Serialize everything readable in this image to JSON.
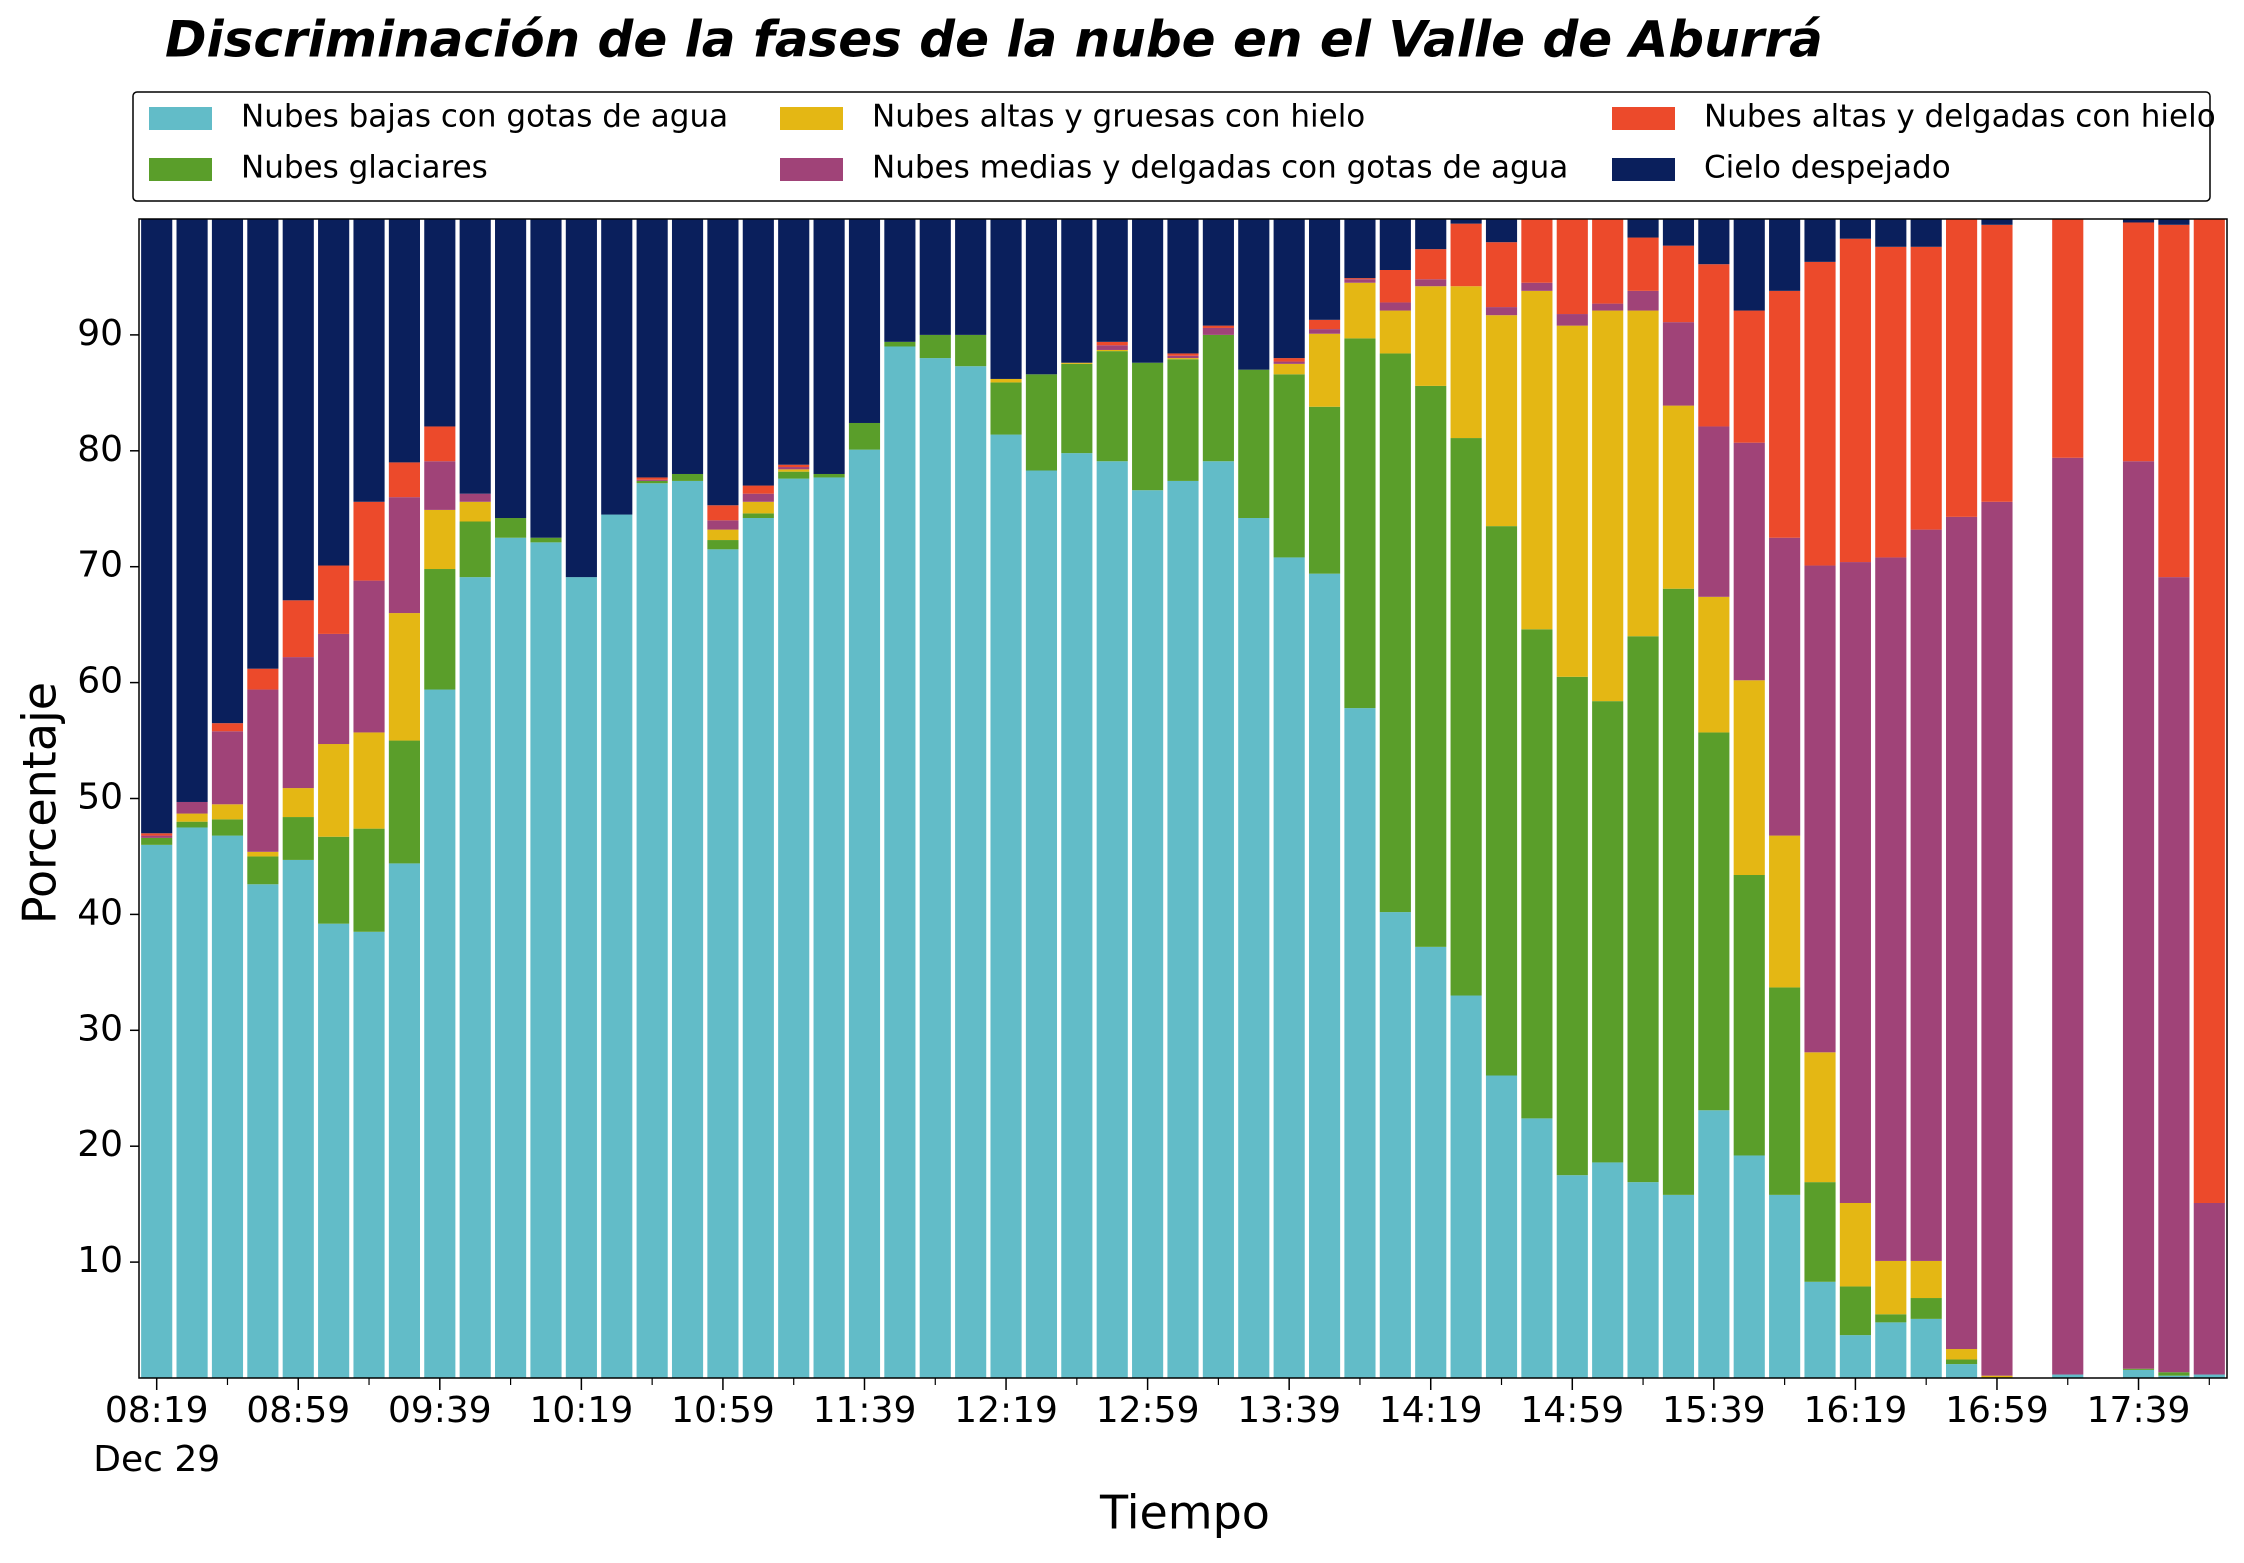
{
  "chart_data": {
    "type": "stacked_bar",
    "title": "Discriminación de la fases de la nube en el Valle de Aburrá",
    "x_label": "Tiempo",
    "y_label": "Porcentaje",
    "x_sublabel": "Dec 29",
    "categories": [
      "08:19",
      null,
      null,
      null,
      "08:59",
      null,
      null,
      null,
      "09:39",
      null,
      null,
      null,
      "10:19",
      null,
      null,
      null,
      "10:59",
      null,
      null,
      null,
      "11:39",
      null,
      null,
      null,
      "12:19",
      null,
      null,
      null,
      "12:59",
      null,
      null,
      null,
      "13:39",
      null,
      null,
      null,
      "14:19",
      null,
      null,
      null,
      "14:59",
      null,
      null,
      null,
      "15:39",
      null,
      null,
      null,
      "16:19",
      null,
      null,
      null,
      "16:59",
      null,
      null,
      null,
      "17:39",
      null,
      null
    ],
    "ylim": [
      0,
      100
    ],
    "yticks": [
      10,
      20,
      30,
      40,
      50,
      60,
      70,
      80,
      90
    ],
    "legend": {
      "ncol": 3
    },
    "series": [
      {
        "name": "Nubes bajas con gotas de agua",
        "color": "#62bcc8",
        "values": [
          46,
          47.5,
          46.8,
          42.6,
          44.7,
          39.2,
          38.5,
          44.4,
          59.4,
          69.1,
          72.5,
          72.1,
          69.1,
          74.5,
          77.2,
          77.4,
          71.5,
          74.2,
          77.6,
          77.7,
          80.1,
          89,
          88,
          87.3,
          81.4,
          78.3,
          79.8,
          79.1,
          76.6,
          77.4,
          79.1,
          74.2,
          70.8,
          69.4,
          57.8,
          40.2,
          37.2,
          33,
          26.1,
          22.4,
          17.5,
          18.6,
          16.9,
          15.8,
          23.1,
          19.2,
          15.8,
          8.3,
          3.7,
          4.8,
          5.1,
          1.2,
          0,
          0,
          0.3,
          0,
          0.7,
          0.2,
          0.3
        ]
      },
      {
        "name": "Nubes glaciares",
        "color": "#5a9e2a",
        "values": [
          0.6,
          0.5,
          1.4,
          2.4,
          3.7,
          7.5,
          8.9,
          10.6,
          10.4,
          4.8,
          1.7,
          0.4,
          0,
          0,
          0.2,
          0.6,
          0.8,
          0.4,
          0.6,
          0.3,
          2.3,
          0.4,
          2,
          2.7,
          4.5,
          8.3,
          7.7,
          9.5,
          11,
          10.5,
          10.9,
          12.8,
          15.8,
          14.4,
          31.9,
          48.2,
          48.4,
          48.1,
          47.4,
          42.2,
          43,
          39.8,
          47.1,
          52.3,
          32.6,
          24.2,
          17.9,
          8.6,
          4.2,
          0.7,
          1.8,
          0.4,
          0,
          0,
          0,
          0,
          0.1,
          0.3,
          0
        ]
      },
      {
        "name": "Nubes altas y gruesas con hielo",
        "color": "#e4b714",
        "values": [
          0,
          0.7,
          1.3,
          0.4,
          2.5,
          8,
          8.3,
          11,
          5.1,
          1.7,
          0,
          0,
          0,
          0,
          0,
          0,
          0.9,
          1,
          0.2,
          0,
          0,
          0,
          0,
          0,
          0.3,
          0,
          0.1,
          0.1,
          0,
          0.1,
          0,
          0,
          0.9,
          6.3,
          4.8,
          3.7,
          8.6,
          13.1,
          18.2,
          29.2,
          30.3,
          33.7,
          28.1,
          15.8,
          11.7,
          16.8,
          13.1,
          11.2,
          7.2,
          4.6,
          3.2,
          0.9,
          0.2,
          0,
          0,
          0,
          0,
          0,
          0
        ]
      },
      {
        "name": "Nubes medias y delgadas con gotas de agua",
        "color": "#a04378",
        "values": [
          0.2,
          1,
          6.3,
          14,
          11.3,
          9.5,
          13.1,
          10,
          4.2,
          0.7,
          0,
          0,
          0,
          0,
          0.1,
          0,
          0.8,
          0.7,
          0.2,
          0,
          0,
          0,
          0,
          0,
          0,
          0,
          0,
          0.4,
          0,
          0.2,
          0.6,
          0,
          0.2,
          0.4,
          0.3,
          0.7,
          0.6,
          0,
          0.7,
          0.7,
          1,
          0.6,
          1.7,
          7.2,
          14.7,
          20.5,
          25.7,
          42,
          55.3,
          60.7,
          63.1,
          71.8,
          75.4,
          0,
          79.1,
          0,
          78.3,
          68.6,
          14.8
        ]
      },
      {
        "name": "Nubes altas y delgadas con hielo",
        "color": "#ec4a2b",
        "values": [
          0.2,
          0,
          0.7,
          1.8,
          4.9,
          5.9,
          6.8,
          3,
          3,
          0,
          0,
          0,
          0,
          0,
          0.2,
          0,
          1.3,
          0.7,
          0.2,
          0,
          0,
          0,
          0,
          0,
          0,
          0,
          0,
          0.3,
          0,
          0.2,
          0.2,
          0,
          0.3,
          0.8,
          0.1,
          2.8,
          2.6,
          5.4,
          5.6,
          5.5,
          8.2,
          7.3,
          4.6,
          6.6,
          14,
          11.4,
          21.3,
          26.2,
          27.9,
          26.8,
          24.4,
          25.7,
          23.9,
          0,
          20.6,
          0,
          20.6,
          30.4,
          84.9
        ]
      },
      {
        "name": "Cielo despejado",
        "color": "#0a1f5c",
        "values": [
          53,
          50.3,
          43.5,
          38.8,
          32.9,
          29.9,
          24.4,
          21,
          17.9,
          23.7,
          25.8,
          27.5,
          30.9,
          25.5,
          22.3,
          22,
          24.7,
          23,
          21.2,
          22,
          17.6,
          10.6,
          10,
          10,
          13.8,
          13.4,
          12.4,
          10.6,
          12.4,
          11.6,
          9.2,
          13,
          12,
          8.7,
          5.1,
          4.4,
          2.6,
          0.4,
          2,
          0,
          0,
          0,
          1.6,
          2.3,
          3.9,
          7.9,
          6.2,
          3.7,
          1.7,
          2.4,
          2.4,
          0,
          0.5,
          0,
          0,
          0,
          0.3,
          0.5,
          0
        ]
      }
    ]
  }
}
